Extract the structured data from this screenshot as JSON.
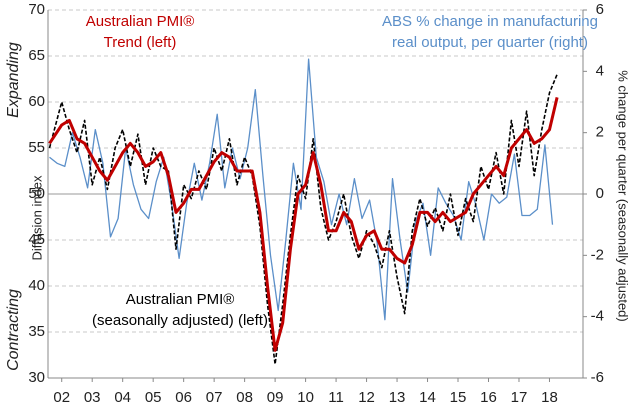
{
  "chart_data": {
    "type": "line",
    "y_label": "Diffusion index",
    "y2_label": "% change per quarter (seasonally adjusted)",
    "annotations": [
      "Expanding",
      "Contracting"
    ],
    "xlim": [
      2001.55,
      2019.1
    ],
    "xticks": [
      {
        "value": 2002,
        "label": "02"
      },
      {
        "value": 2003,
        "label": "03"
      },
      {
        "value": 2004,
        "label": "04"
      },
      {
        "value": 2005,
        "label": "05"
      },
      {
        "value": 2006,
        "label": "06"
      },
      {
        "value": 2007,
        "label": "07"
      },
      {
        "value": 2008,
        "label": "08"
      },
      {
        "value": 2009,
        "label": "09"
      },
      {
        "value": 2010,
        "label": "10"
      },
      {
        "value": 2011,
        "label": "11"
      },
      {
        "value": 2012,
        "label": "12"
      },
      {
        "value": 2013,
        "label": "13"
      },
      {
        "value": 2014,
        "label": "14"
      },
      {
        "value": 2015,
        "label": "15"
      },
      {
        "value": 2016,
        "label": "16"
      },
      {
        "value": 2017,
        "label": "17"
      },
      {
        "value": 2018,
        "label": "18"
      }
    ],
    "ylim": [
      30,
      70
    ],
    "yticks": [
      30,
      35,
      40,
      45,
      50,
      55,
      60,
      65,
      70
    ],
    "y2lim": [
      -6,
      6
    ],
    "y2ticks": [
      -6,
      -4,
      -2,
      0,
      2,
      4,
      6
    ],
    "grid": true,
    "series": [
      {
        "name": [
          "Australian PMI®",
          "(seasonally adjusted) (left)"
        ],
        "color": "#000000",
        "dashed": true,
        "x": [
          2001.6,
          2002,
          2002.25,
          2002.5,
          2002.75,
          2003,
          2003.25,
          2003.5,
          2003.75,
          2004,
          2004.25,
          2004.5,
          2004.75,
          2005,
          2005.25,
          2005.5,
          2005.75,
          2006,
          2006.25,
          2006.5,
          2006.75,
          2007,
          2007.25,
          2007.5,
          2007.75,
          2008,
          2008.25,
          2008.5,
          2008.75,
          2009,
          2009.25,
          2009.5,
          2009.75,
          2010,
          2010.25,
          2010.5,
          2010.75,
          2011,
          2011.25,
          2011.5,
          2011.75,
          2012,
          2012.25,
          2012.5,
          2012.75,
          2013,
          2013.25,
          2013.5,
          2013.75,
          2014,
          2014.25,
          2014.5,
          2014.75,
          2015,
          2015.25,
          2015.5,
          2015.75,
          2016,
          2016.25,
          2016.5,
          2016.75,
          2017,
          2017.25,
          2017.5,
          2017.75,
          2018,
          2018.25
        ],
        "values": [
          55,
          60,
          57,
          54.5,
          58,
          51,
          54,
          50.5,
          55,
          57,
          53,
          56.5,
          51,
          55,
          53,
          52.5,
          44,
          51,
          49.5,
          52.5,
          50.5,
          55,
          52.5,
          56,
          51,
          54,
          52,
          46.5,
          38,
          31.5,
          38,
          45.5,
          52,
          49.5,
          56,
          48.5,
          45,
          47,
          50,
          45.5,
          43,
          46,
          44.5,
          42,
          46,
          41,
          37,
          46,
          49.5,
          46.5,
          48.5,
          46,
          50,
          45.5,
          49.5,
          47,
          53,
          50.5,
          54.5,
          50,
          58,
          53,
          59,
          52,
          57,
          61,
          63
        ]
      },
      {
        "name": [
          "Australian PMI®",
          "Trend (left)"
        ],
        "color": "#c00000",
        "x": [
          2001.6,
          2002,
          2002.25,
          2002.5,
          2002.75,
          2003,
          2003.25,
          2003.5,
          2003.75,
          2004,
          2004.25,
          2004.5,
          2004.75,
          2005,
          2005.25,
          2005.5,
          2005.75,
          2006,
          2006.25,
          2006.5,
          2006.75,
          2007,
          2007.25,
          2007.5,
          2007.75,
          2008,
          2008.25,
          2008.5,
          2008.75,
          2009,
          2009.25,
          2009.5,
          2009.75,
          2010,
          2010.25,
          2010.5,
          2010.75,
          2011,
          2011.25,
          2011.5,
          2011.75,
          2012,
          2012.25,
          2012.5,
          2012.75,
          2013,
          2013.25,
          2013.5,
          2013.75,
          2014,
          2014.25,
          2014.5,
          2014.75,
          2015,
          2015.25,
          2015.5,
          2015.75,
          2016,
          2016.25,
          2016.5,
          2016.75,
          2017,
          2017.25,
          2017.5,
          2017.75,
          2018,
          2018.25
        ],
        "values": [
          55.5,
          57.5,
          58,
          56,
          55.5,
          54,
          52.5,
          51.5,
          53,
          54.5,
          55.5,
          54.5,
          53,
          53.5,
          54.5,
          52,
          48,
          49,
          50.5,
          50.5,
          52,
          53.5,
          54.5,
          54,
          52.5,
          52.5,
          52.5,
          48,
          40,
          33,
          36,
          44,
          50,
          51,
          54.5,
          51,
          46,
          46,
          48,
          47,
          44,
          45.5,
          46,
          44,
          44,
          43,
          42.5,
          44.5,
          48,
          48,
          47,
          48,
          47,
          47.5,
          48,
          50,
          51,
          52,
          53,
          52,
          55,
          56,
          57,
          55.5,
          56,
          57,
          60.5
        ]
      },
      {
        "name": [
          "ABS % change in manufacturing",
          "real output, per quarter (right)"
        ],
        "color": "#5b8fc9",
        "axis": "y2",
        "x": [
          2001.6,
          2001.85,
          2002.1,
          2002.35,
          2002.6,
          2002.85,
          2003.1,
          2003.35,
          2003.6,
          2003.85,
          2004.1,
          2004.35,
          2004.6,
          2004.85,
          2005.1,
          2005.35,
          2005.6,
          2005.85,
          2006.1,
          2006.35,
          2006.6,
          2006.85,
          2007.1,
          2007.35,
          2007.6,
          2007.85,
          2008.1,
          2008.35,
          2008.6,
          2008.85,
          2009.1,
          2009.35,
          2009.6,
          2009.85,
          2010.1,
          2010.35,
          2010.6,
          2010.85,
          2011.1,
          2011.35,
          2011.6,
          2011.85,
          2012.1,
          2012.35,
          2012.6,
          2012.85,
          2013.1,
          2013.35,
          2013.6,
          2013.85,
          2014.1,
          2014.35,
          2014.6,
          2014.85,
          2015.1,
          2015.35,
          2015.6,
          2015.85,
          2016.1,
          2016.35,
          2016.6,
          2016.85,
          2017.1,
          2017.35,
          2017.6,
          2017.85,
          2018.1
        ],
        "values": [
          1.2,
          1.0,
          0.9,
          2.0,
          1.2,
          0.2,
          2.1,
          1.0,
          -1.4,
          -0.8,
          1.5,
          0.3,
          -0.5,
          -0.8,
          0.4,
          1.2,
          -0.3,
          -2.1,
          -0.3,
          1.0,
          -0.2,
          1.0,
          2.6,
          0.2,
          1.5,
          0.5,
          1.5,
          3.4,
          0.6,
          -2.0,
          -3.8,
          -1.5,
          1.0,
          -0.5,
          4.4,
          1.2,
          0.4,
          -1.0,
          0.0,
          -1.0,
          0.5,
          -0.8,
          -0.2,
          -1.6,
          -4.1,
          0.5,
          -1.5,
          -3.2,
          -0.9,
          -0.3,
          -2.0,
          0.2,
          -0.3,
          -0.7,
          -1.5,
          0.4,
          -0.4,
          -1.5,
          0.0,
          -0.3,
          -0.1,
          1.3,
          -0.7,
          -0.7,
          -0.5,
          1.6,
          -1.0
        ]
      }
    ]
  }
}
